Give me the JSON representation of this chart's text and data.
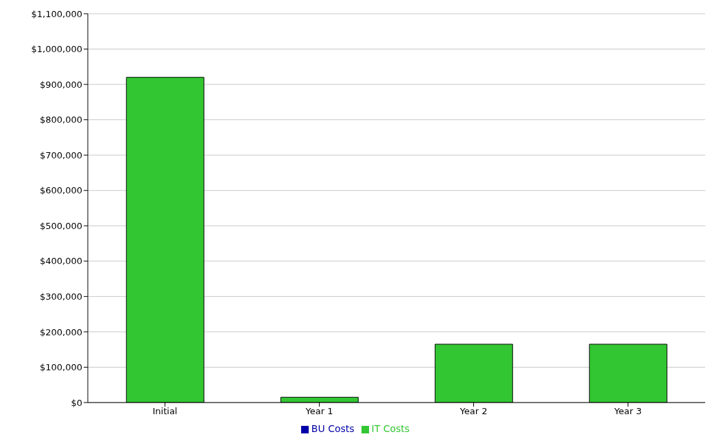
{
  "chart_data": {
    "type": "bar",
    "stacked": true,
    "categories": [
      "Initial",
      "Year 1",
      "Year 2",
      "Year 3"
    ],
    "series": [
      {
        "name": "IT Costs",
        "color": "#33c633",
        "values": [
          920000,
          15000,
          165000,
          165000
        ]
      },
      {
        "name": "BU Costs",
        "color": "#0000a8",
        "values": [
          0,
          0,
          0,
          0
        ]
      }
    ],
    "ylim": [
      0,
      1100000
    ],
    "yticks": [
      {
        "value": 0,
        "label": "$0"
      },
      {
        "value": 100000,
        "label": "$100,000"
      },
      {
        "value": 200000,
        "label": "$200,000"
      },
      {
        "value": 300000,
        "label": "$300,000"
      },
      {
        "value": 400000,
        "label": "$400,000"
      },
      {
        "value": 500000,
        "label": "$500,000"
      },
      {
        "value": 600000,
        "label": "$600,000"
      },
      {
        "value": 700000,
        "label": "$700,000"
      },
      {
        "value": 800000,
        "label": "$800,000"
      },
      {
        "value": 900000,
        "label": "$900,000"
      },
      {
        "value": 1000000,
        "label": "$1,000,000"
      },
      {
        "value": 1100000,
        "label": "$1,100,000"
      }
    ],
    "grid": "y",
    "legend": "bottom"
  }
}
